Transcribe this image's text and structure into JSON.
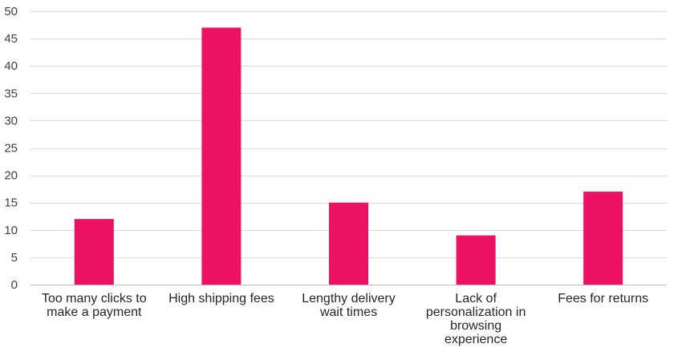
{
  "chart_data": {
    "type": "bar",
    "title": "",
    "xlabel": "",
    "ylabel": "",
    "categories": [
      "Too many clicks to make a payment",
      "High shipping fees",
      "Lengthy delivery wait times",
      "Lack of personalization in browsing experience",
      "Fees for returns"
    ],
    "values": [
      12,
      47,
      15,
      9,
      17
    ],
    "ylim": [
      0,
      50
    ],
    "y_ticks": [
      0,
      5,
      10,
      15,
      20,
      25,
      30,
      35,
      40,
      45,
      50
    ],
    "grid": true,
    "legend": "none",
    "bar_color": "#ec1162"
  }
}
